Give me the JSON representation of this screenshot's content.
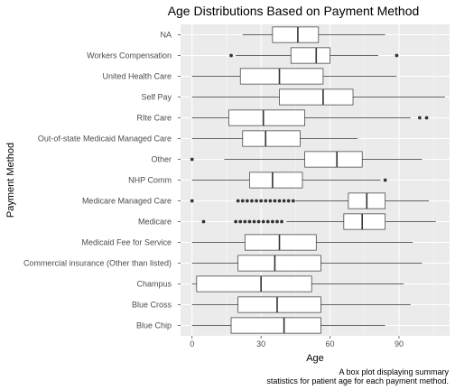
{
  "chart_data": {
    "type": "boxplot",
    "orientation": "horizontal",
    "title": "Age Distributions Based on Payment Method",
    "xlabel": "Age",
    "ylabel": "Payment Method",
    "xlim": [
      -5,
      112
    ],
    "xticks": [
      0,
      30,
      60,
      90
    ],
    "grid": true,
    "caption_lines": [
      "A box plot displaying summary",
      "statistics for patient age for each payment method."
    ],
    "categories": [
      {
        "name": "NA",
        "min": 22,
        "q1": 35,
        "median": 46,
        "q3": 55,
        "max": 84,
        "outliers": []
      },
      {
        "name": "Workers Compensation",
        "min": 19,
        "q1": 43,
        "median": 54,
        "q3": 60,
        "max": 81,
        "outliers": [
          17,
          89
        ]
      },
      {
        "name": "United Health Care",
        "min": 0,
        "q1": 21,
        "median": 38,
        "q3": 57,
        "max": 89,
        "outliers": []
      },
      {
        "name": "Self Pay",
        "min": 0,
        "q1": 38,
        "median": 57,
        "q3": 70,
        "max": 110,
        "outliers": []
      },
      {
        "name": "RIte Care",
        "min": 0,
        "q1": 16,
        "median": 31,
        "q3": 49,
        "max": 95,
        "outliers": [
          99,
          102
        ]
      },
      {
        "name": "Out-of-state Medicaid Managed Care",
        "min": 0,
        "q1": 22,
        "median": 32,
        "q3": 47,
        "max": 72,
        "outliers": []
      },
      {
        "name": "Other",
        "min": 14,
        "q1": 49,
        "median": 63,
        "q3": 74,
        "max": 100,
        "outliers": [
          0
        ]
      },
      {
        "name": "NHP Comm",
        "min": 0,
        "q1": 25,
        "median": 35,
        "q3": 48,
        "max": 82,
        "outliers": [
          84
        ]
      },
      {
        "name": "Medicare Managed Care",
        "min": 45,
        "q1": 68,
        "median": 76,
        "q3": 84,
        "max": 103,
        "outliers": [
          0,
          20,
          22,
          24,
          26,
          28,
          30,
          32,
          34,
          36,
          38,
          40,
          42,
          44
        ]
      },
      {
        "name": "Medicare",
        "min": 41,
        "q1": 66,
        "median": 74,
        "q3": 84,
        "max": 106,
        "outliers": [
          5,
          19,
          21,
          23,
          25,
          27,
          29,
          31,
          33,
          35,
          37,
          39
        ]
      },
      {
        "name": "Medicaid Fee for Service",
        "min": 0,
        "q1": 23,
        "median": 38,
        "q3": 54,
        "max": 96,
        "outliers": []
      },
      {
        "name": "Commercial insurance (Other than listed)",
        "min": 0,
        "q1": 20,
        "median": 36,
        "q3": 56,
        "max": 100,
        "outliers": []
      },
      {
        "name": "Champus",
        "min": 0,
        "q1": 2,
        "median": 30,
        "q3": 52,
        "max": 92,
        "outliers": []
      },
      {
        "name": "Blue Cross",
        "min": 0,
        "q1": 20,
        "median": 37,
        "q3": 56,
        "max": 95,
        "outliers": []
      },
      {
        "name": "Blue Chip",
        "min": 0,
        "q1": 17,
        "median": 40,
        "q3": 56,
        "max": 84,
        "outliers": []
      }
    ]
  }
}
